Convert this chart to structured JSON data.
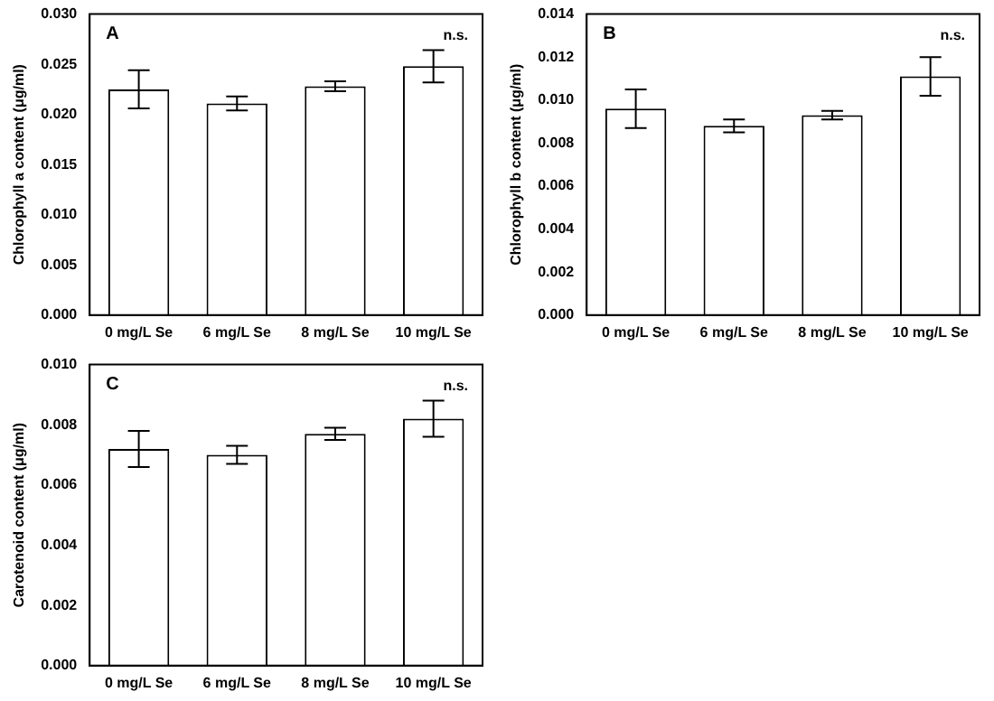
{
  "chart_data": [
    {
      "type": "bar",
      "title": "A",
      "ylabel": "Chlorophyll a content (μg/ml)",
      "categories": [
        "0 mg/L Se",
        "6 mg/L Se",
        "8 mg/L Se",
        "10 mg/L Se"
      ],
      "values": [
        0.0225,
        0.0211,
        0.0228,
        0.0248
      ],
      "errors": [
        0.0019,
        0.0007,
        0.0005,
        0.0016
      ],
      "color": "#ffffff",
      "ylim": [
        0,
        0.03
      ],
      "yticks": [
        {
          "value": 0,
          "label": "0.000"
        },
        {
          "value": 0.005,
          "label": "0.005"
        },
        {
          "value": 0.01,
          "label": "0.010"
        },
        {
          "value": 0.015,
          "label": "0.015"
        },
        {
          "value": 0.02,
          "label": "0.020"
        },
        {
          "value": 0.025,
          "label": "0.025"
        },
        {
          "value": 0.03,
          "label": "0.030"
        }
      ],
      "annotations": [
        "n.s."
      ],
      "grid": false,
      "legend": false
    },
    {
      "type": "bar",
      "title": "B",
      "ylabel": "Chlorophyll b content (μg/ml)",
      "categories": [
        "0 mg/L Se",
        "6 mg/L Se",
        "8 mg/L Se",
        "10 mg/L Se"
      ],
      "values": [
        0.0096,
        0.0088,
        0.0093,
        0.0111
      ],
      "errors": [
        0.0009,
        0.0003,
        0.0002,
        0.0009
      ],
      "color": "#ffffff",
      "ylim": [
        0,
        0.014
      ],
      "yticks": [
        {
          "value": 0,
          "label": "0.000"
        },
        {
          "value": 0.002,
          "label": "0.002"
        },
        {
          "value": 0.004,
          "label": "0.004"
        },
        {
          "value": 0.006,
          "label": "0.006"
        },
        {
          "value": 0.008,
          "label": "0.008"
        },
        {
          "value": 0.01,
          "label": "0.010"
        },
        {
          "value": 0.012,
          "label": "0.012"
        },
        {
          "value": 0.014,
          "label": "0.014"
        }
      ],
      "annotations": [
        "n.s."
      ],
      "grid": false,
      "legend": false
    },
    {
      "type": "bar",
      "title": "C",
      "ylabel": "Carotenoid content (μg/ml)",
      "categories": [
        "0 mg/L Se",
        "6 mg/L Se",
        "8 mg/L Se",
        "10 mg/L Se"
      ],
      "values": [
        0.0072,
        0.007,
        0.0077,
        0.0082
      ],
      "errors": [
        0.0006,
        0.0003,
        0.0002,
        0.0006
      ],
      "color": "#ffffff",
      "ylim": [
        0,
        0.01
      ],
      "yticks": [
        {
          "value": 0,
          "label": "0.000"
        },
        {
          "value": 0.002,
          "label": "0.002"
        },
        {
          "value": 0.004,
          "label": "0.004"
        },
        {
          "value": 0.006,
          "label": "0.006"
        },
        {
          "value": 0.008,
          "label": "0.008"
        },
        {
          "value": 0.01,
          "label": "0.010"
        }
      ],
      "annotations": [
        "n.s."
      ],
      "grid": false,
      "legend": false
    }
  ]
}
